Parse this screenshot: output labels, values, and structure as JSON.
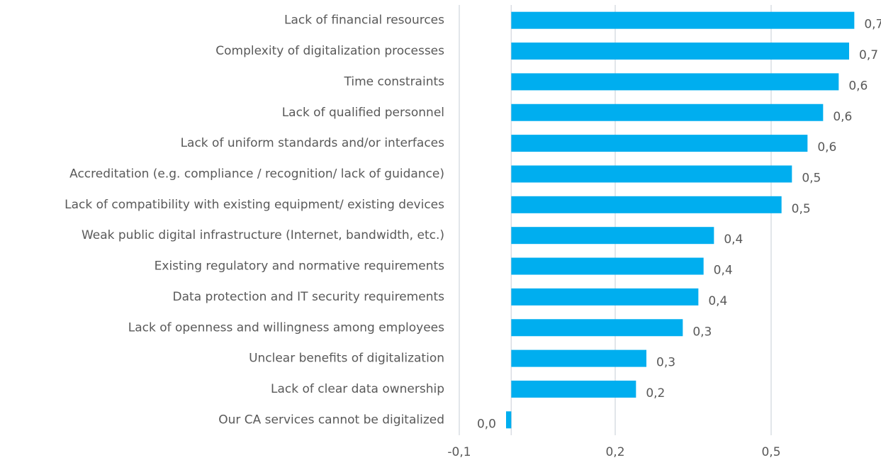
{
  "chart_data": {
    "type": "hbar",
    "categories": [
      "Lack of financial resources",
      "Complexity of digitalization processes",
      "Time constraints",
      "Lack of qualified personnel",
      "Lack of uniform standards and/or interfaces",
      "Accreditation (e.g. compliance / recognition/ lack of guidance)",
      "Lack of compatibility with existing equipment/ existing devices",
      "Weak public digital infrastructure (Internet, bandwidth, etc.)",
      "Existing regulatory and normative requirements",
      "Data protection and IT security requirements",
      "Lack of openness and willingness among employees",
      "Unclear benefits of digitalization ",
      "Lack of clear data ownership",
      "Our CA services cannot be digitalized"
    ],
    "values": [
      0.66,
      0.65,
      0.63,
      0.6,
      0.57,
      0.54,
      0.52,
      0.39,
      0.37,
      0.36,
      0.33,
      0.26,
      0.24,
      -0.01
    ],
    "value_labels": [
      "0,7",
      "0,7",
      "0,6",
      "0,6",
      "0,6",
      "0,5",
      "0,5",
      "0,4",
      "0,4",
      "0,4",
      "0,3",
      "0,3",
      "0,2",
      "0,0"
    ],
    "color": "#00aeef",
    "xlim": [
      -0.1,
      0.7
    ],
    "xticks": [
      {
        "value": -0.1,
        "label": "-0,1"
      },
      {
        "value": 0.2,
        "label": "0,2"
      },
      {
        "value": 0.5,
        "label": "0,5"
      }
    ],
    "grid": true
  }
}
